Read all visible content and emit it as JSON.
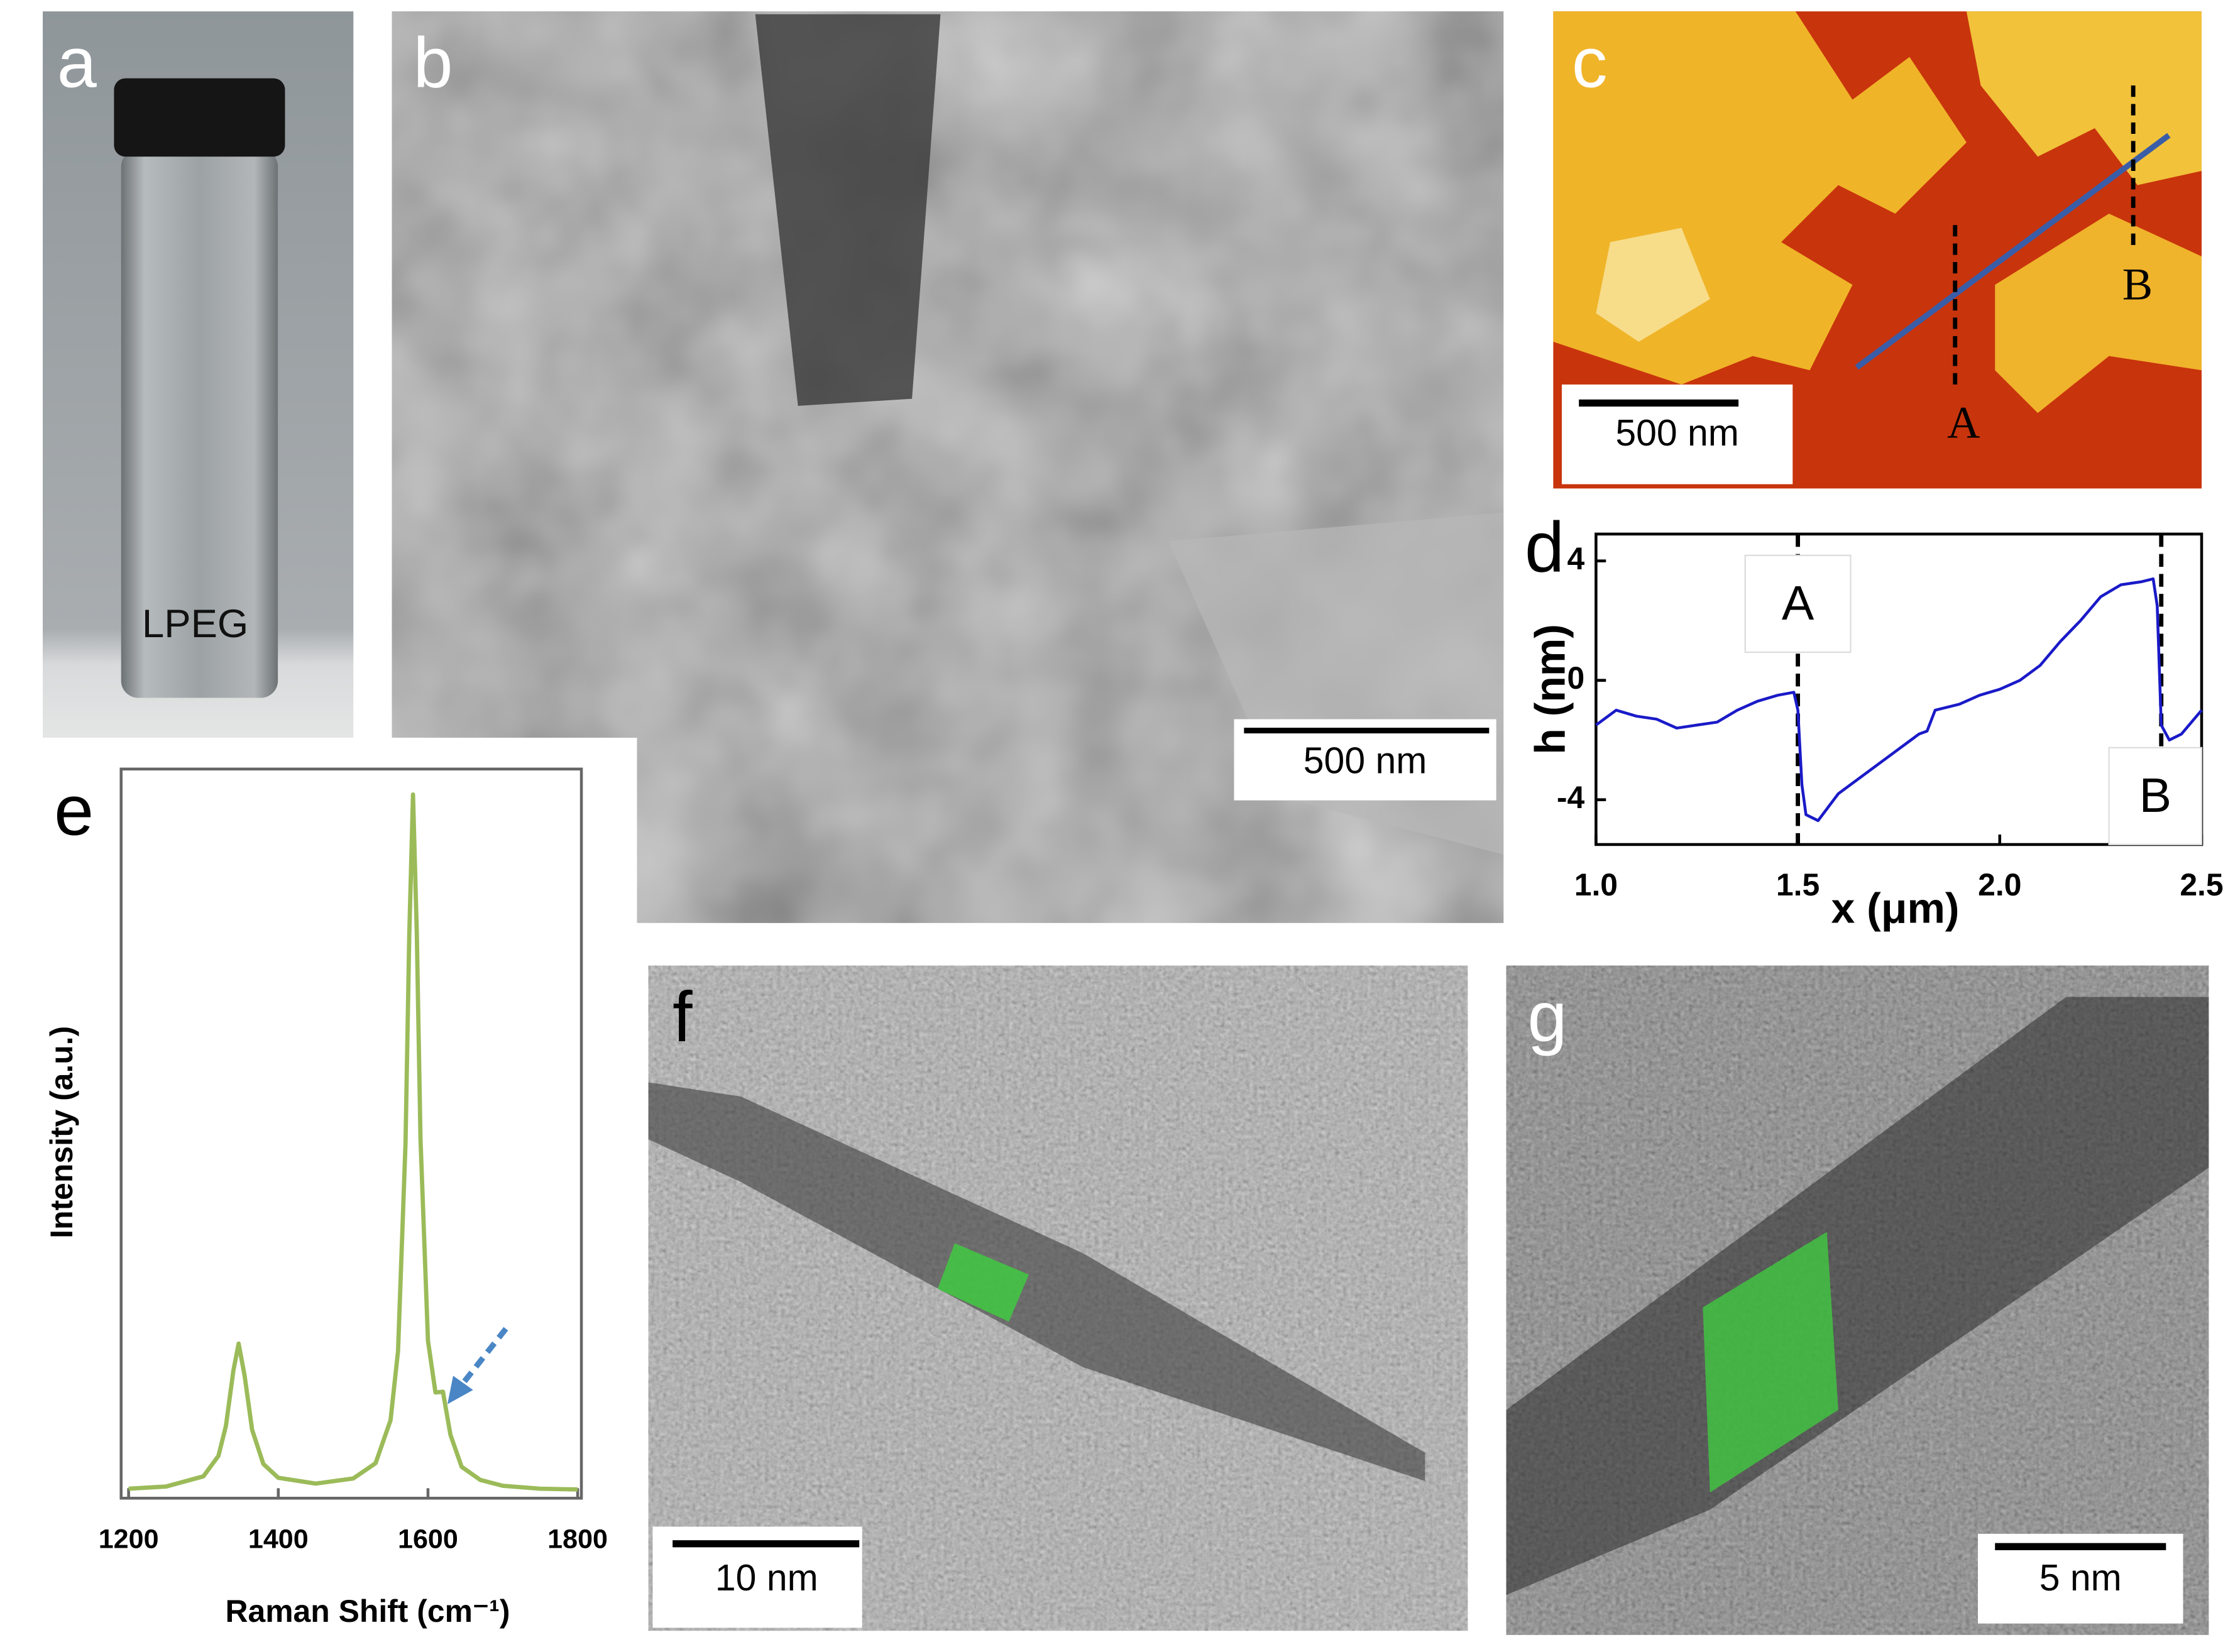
{
  "panels": {
    "a": {
      "label": "a",
      "sample": "LPEG"
    },
    "b": {
      "label": "b",
      "scale_bar": "500 nm"
    },
    "c": {
      "label": "c",
      "scale_bar": "500 nm",
      "markers": [
        "A",
        "B"
      ]
    },
    "f": {
      "label": "f",
      "scale_bar": "10 nm"
    },
    "g": {
      "label": "g",
      "scale_bar": "5 nm"
    }
  },
  "chart_data": [
    {
      "type": "line",
      "panel_label": "d",
      "x_label": "x (μm)",
      "y_label": "h (nm)",
      "color": "#1a1ac8",
      "x": [
        1.0,
        1.05,
        1.1,
        1.15,
        1.2,
        1.25,
        1.3,
        1.35,
        1.4,
        1.45,
        1.49,
        1.5,
        1.51,
        1.52,
        1.55,
        1.6,
        1.65,
        1.7,
        1.75,
        1.8,
        1.82,
        1.84,
        1.9,
        1.95,
        2.0,
        2.05,
        2.1,
        2.15,
        2.2,
        2.25,
        2.3,
        2.35,
        2.38,
        2.39,
        2.4,
        2.42,
        2.45,
        2.5
      ],
      "values": [
        -1.5,
        -1.0,
        -1.2,
        -1.3,
        -1.6,
        -1.5,
        -1.4,
        -1.0,
        -0.7,
        -0.5,
        -0.4,
        -1.0,
        -3.5,
        -4.5,
        -4.7,
        -3.8,
        -3.3,
        -2.8,
        -2.3,
        -1.8,
        -1.7,
        -1.0,
        -0.8,
        -0.5,
        -0.3,
        0,
        0.5,
        1.3,
        2.0,
        2.8,
        3.2,
        3.3,
        3.4,
        2.5,
        -1.5,
        -2.0,
        -1.8,
        -1.0
      ],
      "xlim": [
        1.0,
        2.5
      ],
      "ylim": [
        -5.5,
        4.9
      ],
      "xticks": [
        {
          "value": 1,
          "label": "1.0"
        },
        {
          "value": 1.5,
          "label": "1.5"
        },
        {
          "value": 2,
          "label": "2.0"
        },
        {
          "value": 2.5,
          "label": "2.5"
        }
      ],
      "yticks": [
        -4,
        0,
        4
      ],
      "annotations": [
        {
          "text": "A",
          "x": 1.5
        },
        {
          "text": "B",
          "x": 2.4
        }
      ]
    },
    {
      "type": "line",
      "panel_label": "e",
      "x_label": "Raman Shift (cm⁻¹)",
      "y_label": "Intensity (a.u.)",
      "color": "#9bbb59",
      "x": [
        1200,
        1250,
        1300,
        1320,
        1330,
        1340,
        1347,
        1355,
        1365,
        1380,
        1400,
        1450,
        1500,
        1530,
        1550,
        1560,
        1570,
        1575,
        1580,
        1585,
        1590,
        1600,
        1610,
        1620,
        1630,
        1645,
        1670,
        1700,
        1750,
        1800
      ],
      "values": [
        0.013,
        0.016,
        0.03,
        0.058,
        0.099,
        0.175,
        0.212,
        0.168,
        0.094,
        0.047,
        0.028,
        0.02,
        0.027,
        0.048,
        0.107,
        0.202,
        0.487,
        0.772,
        0.965,
        0.778,
        0.493,
        0.216,
        0.145,
        0.146,
        0.087,
        0.043,
        0.025,
        0.017,
        0.013,
        0.012
      ],
      "xlim": [
        1190,
        1805
      ],
      "ylim": [
        0,
        1
      ],
      "xticks": [
        1200,
        1400,
        1600,
        1800
      ]
    }
  ]
}
